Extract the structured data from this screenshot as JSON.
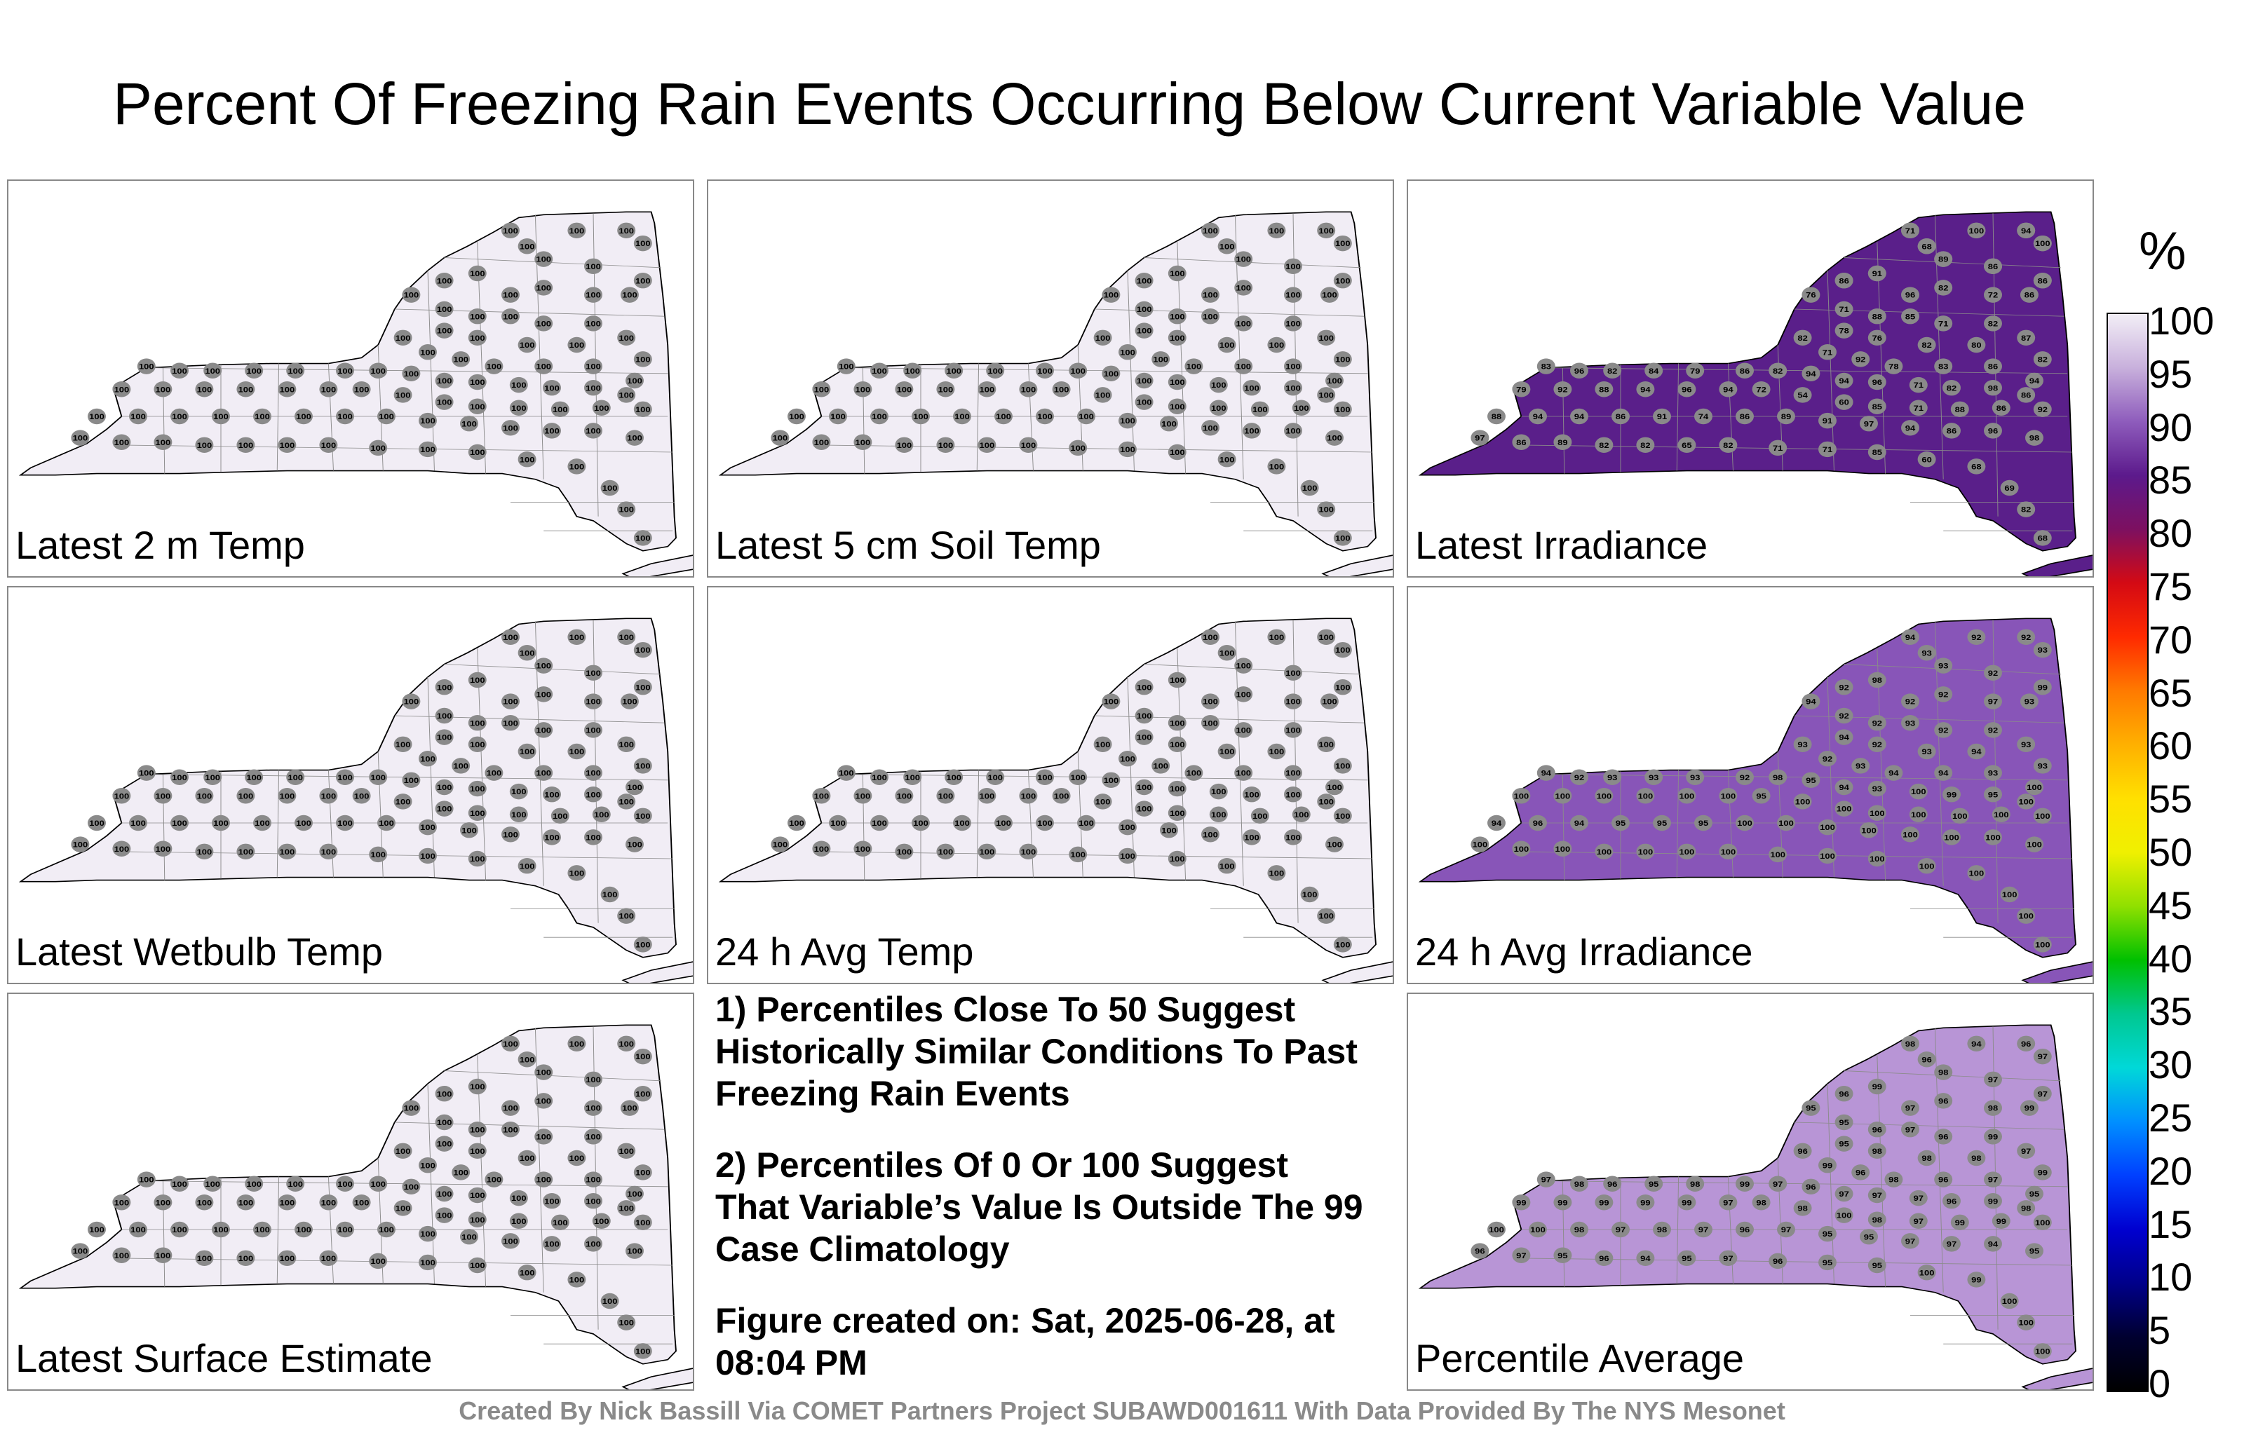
{
  "title": "Percent Of Freezing Rain Events Occurring Below Current Variable Value",
  "panels": [
    {
      "label": "Latest 2 m Temp",
      "fill": "#f1edf5",
      "values": [
        "100",
        "100",
        "100",
        "100",
        "100",
        "100",
        "100",
        "100",
        "100",
        "100",
        "100",
        "100",
        "100",
        "100",
        "100",
        "100",
        "100",
        "100",
        "100",
        "100",
        "100",
        "100",
        "100",
        "100",
        "100",
        "100",
        "100",
        "100",
        "100",
        "100",
        "100",
        "100",
        "100",
        "100",
        "100",
        "100",
        "100",
        "100",
        "100",
        "100",
        "100",
        "100",
        "100",
        "100",
        "100",
        "100",
        "100",
        "100",
        "100",
        "100",
        "100",
        "100",
        "100",
        "100",
        "100",
        "100",
        "100",
        "100",
        "100",
        "100",
        "100",
        "100",
        "100",
        "100",
        "100",
        "100",
        "100",
        "100",
        "100",
        "100",
        "100",
        "100",
        "100",
        "100",
        "100",
        "100",
        "100",
        "100",
        "100",
        "100",
        "100",
        "100",
        "100",
        "100",
        "100",
        "100",
        "100",
        "100",
        "100",
        "100"
      ]
    },
    {
      "label": "Latest 5 cm Soil Temp",
      "fill": "#f1edf5",
      "values": [
        "100",
        "100",
        "100",
        "100",
        "100",
        "100",
        "100",
        "100",
        "100",
        "100",
        "100",
        "100",
        "100",
        "100",
        "100",
        "100",
        "100",
        "100",
        "100",
        "100",
        "100",
        "100",
        "100",
        "100",
        "100",
        "100",
        "100",
        "100",
        "100",
        "100",
        "100",
        "100",
        "100",
        "100",
        "100",
        "100",
        "100",
        "100",
        "100",
        "100",
        "100",
        "100",
        "100",
        "100",
        "100",
        "100",
        "100",
        "100",
        "100",
        "100",
        "100",
        "100",
        "100",
        "100",
        "100",
        "100",
        "100",
        "100",
        "100",
        "100",
        "100",
        "100",
        "100",
        "100",
        "100",
        "100",
        "100",
        "100",
        "100",
        "100",
        "100",
        "100",
        "100",
        "100",
        "100",
        "100",
        "100",
        "100",
        "100",
        "100",
        "100",
        "100",
        "100",
        "100",
        "100",
        "100",
        "100",
        "100",
        "100",
        "100"
      ]
    },
    {
      "label": "Latest Irradiance",
      "fill": "#5a1f8a",
      "values": [
        "92",
        "76",
        "68",
        "78",
        "79",
        "86",
        "93",
        "89",
        "87",
        "80",
        "76",
        "96",
        "82",
        "72",
        "86",
        "71",
        "88",
        "85",
        "71",
        "82",
        "82",
        "78",
        "76",
        "82",
        "80",
        "87",
        "82",
        "71",
        "92",
        "78",
        "83",
        "86",
        "94",
        "83",
        "96",
        "82",
        "84",
        "79",
        "86",
        "82",
        "94",
        "94",
        "96",
        "71",
        "82",
        "98",
        "86",
        "79",
        "92",
        "88",
        "94",
        "96",
        "94",
        "72",
        "54",
        "60",
        "85",
        "71",
        "88",
        "86",
        "92",
        "88",
        "94",
        "94",
        "86",
        "91",
        "74",
        "86",
        "89",
        "91",
        "97",
        "94",
        "86",
        "96",
        "98",
        "97",
        "86",
        "89",
        "82",
        "82",
        "65",
        "82",
        "71",
        "71",
        "85",
        "60",
        "68",
        "69",
        "82",
        "68",
        "71",
        "68",
        "100",
        "94",
        "100",
        "86",
        "91",
        "89",
        "86",
        "86"
      ]
    },
    {
      "label": "Latest Wetbulb Temp",
      "fill": "#f1edf5",
      "values": [
        "100",
        "100",
        "100",
        "100",
        "100",
        "100",
        "100",
        "100",
        "100",
        "100",
        "100",
        "100",
        "100",
        "100",
        "100",
        "100",
        "100",
        "100",
        "100",
        "100",
        "100",
        "100",
        "100",
        "100",
        "100",
        "100",
        "100",
        "100",
        "100",
        "100",
        "100",
        "100",
        "100",
        "100",
        "100",
        "100",
        "100",
        "100",
        "100",
        "100",
        "100",
        "100",
        "100",
        "100",
        "100",
        "100",
        "100",
        "100",
        "100",
        "100",
        "100",
        "100",
        "100",
        "100",
        "100",
        "100",
        "100",
        "100",
        "100",
        "100",
        "100",
        "100",
        "100",
        "100",
        "100",
        "100",
        "100",
        "100",
        "100",
        "100",
        "100",
        "100",
        "100",
        "100",
        "100",
        "100",
        "100",
        "100",
        "100",
        "100",
        "100",
        "100",
        "100",
        "100",
        "100",
        "100",
        "100",
        "100",
        "100",
        "100"
      ]
    },
    {
      "label": "24 h Avg Temp",
      "fill": "#f1edf5",
      "values": [
        "100",
        "100",
        "100",
        "100",
        "100",
        "100",
        "100",
        "100",
        "100",
        "100",
        "100",
        "100",
        "100",
        "100",
        "100",
        "100",
        "100",
        "100",
        "100",
        "100",
        "100",
        "100",
        "100",
        "100",
        "100",
        "100",
        "100",
        "100",
        "100",
        "100",
        "100",
        "100",
        "100",
        "100",
        "100",
        "100",
        "100",
        "100",
        "100",
        "100",
        "100",
        "100",
        "100",
        "100",
        "100",
        "100",
        "100",
        "100",
        "100",
        "100",
        "100",
        "100",
        "100",
        "100",
        "100",
        "100",
        "100",
        "100",
        "100",
        "100",
        "100",
        "100",
        "100",
        "100",
        "100",
        "100",
        "100",
        "100",
        "100",
        "100",
        "100",
        "100",
        "100",
        "100",
        "100",
        "100",
        "100",
        "100",
        "100",
        "100",
        "100",
        "100",
        "100",
        "100",
        "100",
        "100",
        "100",
        "100",
        "100",
        "100"
      ]
    },
    {
      "label": "24 h Avg Irradiance",
      "fill": "#8855b8",
      "values": [
        "94",
        "93",
        "92",
        "92",
        "93",
        "92",
        "98",
        "93",
        "92",
        "99",
        "94",
        "92",
        "92",
        "97",
        "93",
        "92",
        "92",
        "93",
        "92",
        "92",
        "93",
        "94",
        "92",
        "93",
        "94",
        "93",
        "93",
        "92",
        "93",
        "94",
        "94",
        "93",
        "100",
        "94",
        "92",
        "93",
        "93",
        "93",
        "92",
        "98",
        "95",
        "94",
        "93",
        "100",
        "99",
        "95",
        "100",
        "100",
        "100",
        "100",
        "100",
        "100",
        "100",
        "95",
        "100",
        "100",
        "100",
        "100",
        "100",
        "100",
        "100",
        "94",
        "96",
        "94",
        "95",
        "95",
        "95",
        "100",
        "100",
        "100",
        "100",
        "100",
        "100",
        "100",
        "100",
        "100",
        "100",
        "100",
        "100",
        "100",
        "100",
        "100",
        "100",
        "100",
        "100",
        "100",
        "100",
        "100",
        "100",
        "100"
      ]
    },
    {
      "label": "Latest Surface Estimate",
      "fill": "#f1edf5",
      "values": [
        "100",
        "100",
        "100",
        "100",
        "100",
        "100",
        "100",
        "100",
        "100",
        "100",
        "100",
        "100",
        "100",
        "100",
        "100",
        "100",
        "100",
        "100",
        "100",
        "100",
        "100",
        "100",
        "100",
        "100",
        "100",
        "100",
        "100",
        "100",
        "100",
        "100",
        "100",
        "100",
        "100",
        "100",
        "100",
        "100",
        "100",
        "100",
        "100",
        "100",
        "100",
        "100",
        "100",
        "100",
        "100",
        "100",
        "100",
        "100",
        "100",
        "100",
        "100",
        "100",
        "100",
        "100",
        "100",
        "100",
        "100",
        "100",
        "100",
        "100",
        "100",
        "100",
        "100",
        "100",
        "100",
        "100",
        "100",
        "100",
        "100",
        "100",
        "100",
        "100",
        "100",
        "100",
        "100",
        "100",
        "100",
        "100",
        "100",
        "100",
        "100",
        "100",
        "100",
        "100",
        "100",
        "100",
        "100",
        "100",
        "100",
        "100"
      ]
    },
    {
      "label": "Percentile Average",
      "fill": "#b895d6",
      "values": [
        "98",
        "96",
        "94",
        "96",
        "97",
        "96",
        "99",
        "98",
        "97",
        "97",
        "95",
        "97",
        "96",
        "98",
        "99",
        "95",
        "96",
        "97",
        "96",
        "99",
        "96",
        "95",
        "98",
        "98",
        "98",
        "97",
        "99",
        "99",
        "96",
        "98",
        "96",
        "97",
        "95",
        "97",
        "98",
        "96",
        "95",
        "98",
        "99",
        "97",
        "96",
        "97",
        "97",
        "97",
        "96",
        "99",
        "98",
        "99",
        "99",
        "99",
        "99",
        "99",
        "97",
        "98",
        "98",
        "100",
        "98",
        "97",
        "99",
        "99",
        "100",
        "100",
        "100",
        "98",
        "97",
        "98",
        "97",
        "96",
        "97",
        "95",
        "95",
        "97",
        "97",
        "94",
        "95",
        "96",
        "97",
        "95",
        "96",
        "94",
        "95",
        "97",
        "96",
        "95",
        "95",
        "100",
        "99",
        "100",
        "100",
        "100"
      ]
    }
  ],
  "notes": [
    "1) Percentiles Close To 50 Suggest Historically Similar Conditions To Past Freezing Rain Events",
    "2) Percentiles Of 0 Or 100 Suggest That Variable’s Value Is Outside The 99 Case Climatology",
    "Figure created on: Sat, 2025-06-28, at 08:04 PM"
  ],
  "colorbar": {
    "unit": "%",
    "ticks": [
      "100",
      "95",
      "90",
      "85",
      "80",
      "75",
      "70",
      "65",
      "60",
      "55",
      "50",
      "45",
      "40",
      "35",
      "30",
      "25",
      "20",
      "15",
      "10",
      "5",
      "0"
    ],
    "colors": [
      "#f2eef6",
      "#c8b0dc",
      "#8e5cbc",
      "#5c1a8c",
      "#7d1060",
      "#d40a14",
      "#ff2a00",
      "#ff7a00",
      "#ffb000",
      "#ffe000",
      "#f0f000",
      "#90e000",
      "#00c000",
      "#00c890",
      "#00d8d8",
      "#0090ff",
      "#0040ff",
      "#0000d0",
      "#00008a",
      "#000030",
      "#000000"
    ]
  },
  "footer": "Created By Nick Bassill Via COMET Partners Project SUBAWD001611 With Data Provided By The NYS Mesonet"
}
